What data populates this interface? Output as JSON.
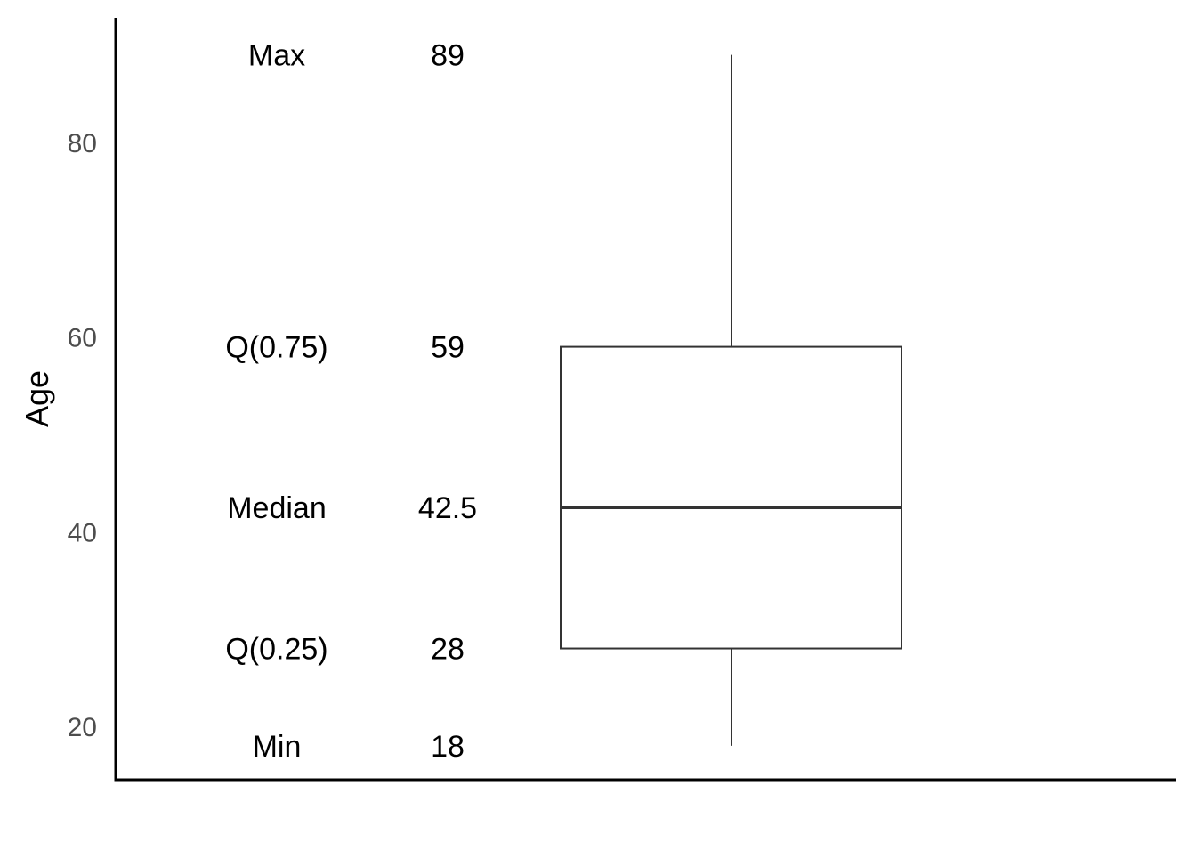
{
  "chart_data": {
    "type": "boxplot",
    "ylabel": "Age",
    "xlabel": "",
    "ylim": [
      15,
      92
    ],
    "yticks": [
      20,
      40,
      60,
      80
    ],
    "stats": {
      "min": 18,
      "q1": 28,
      "median": 42.5,
      "q3": 59,
      "max": 89
    },
    "annotations": [
      {
        "label": "Max",
        "value": "89",
        "y": 89
      },
      {
        "label": "Q(0.75)",
        "value": "59",
        "y": 59
      },
      {
        "label": "Median",
        "value": "42.5",
        "y": 42.5
      },
      {
        "label": "Q(0.25)",
        "value": "28",
        "y": 28
      },
      {
        "label": "Min",
        "value": "18",
        "y": 18
      }
    ],
    "grid": false,
    "colors": {
      "box_stroke": "#333333",
      "box_fill": "#ffffff",
      "axis": "#000000",
      "tick_text": "#4d4d4d",
      "annotation_text": "#000000"
    }
  }
}
